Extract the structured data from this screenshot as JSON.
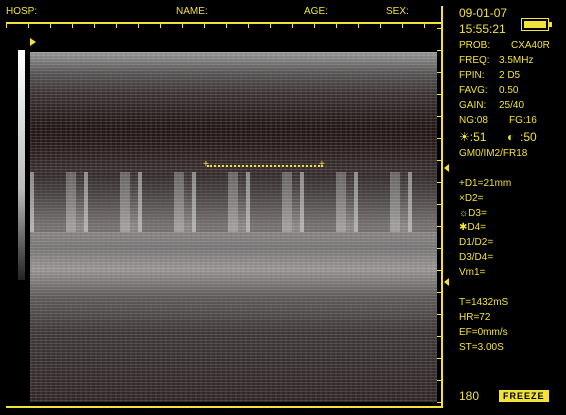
{
  "header": {
    "hosp": "HOSP:",
    "name": "NAME:",
    "age": "AGE:",
    "sex": "SEX:"
  },
  "date": "09-01-07",
  "time": "15:55:21",
  "battery_level": 1.0,
  "params": {
    "prob_label": "PROB:",
    "prob_value": "CXA40R",
    "freq_label": "FREQ:",
    "freq_value": "3.5MHz",
    "fpin_label": "FPIN:",
    "fpin_value": "2 D5",
    "favg_label": "FAVG:",
    "favg_value": "0.50",
    "gain_label": "GAIN:",
    "gain_value": "25/40",
    "ng": "NG:08",
    "fg": "FG:16",
    "brightness": ":51",
    "contrast": ":50",
    "mode": "GM0/IM2/FR18"
  },
  "measurements": {
    "d1": "+D1=21mm",
    "d2": "×D2=",
    "d3": "☼D3=",
    "d4": "✱D4=",
    "d1d2": "D1/D2=",
    "d3d4": "D3/D4=",
    "vm1": "Vm1="
  },
  "calc": {
    "t": "T=1432mS",
    "hr": "HR=72",
    "ef": "EF=0mm/s",
    "st": "ST=3.00S"
  },
  "footer": {
    "frame": "180",
    "freeze": "FREEZE"
  },
  "colors": {
    "accent": "#f2e23a",
    "background": "#000000"
  }
}
